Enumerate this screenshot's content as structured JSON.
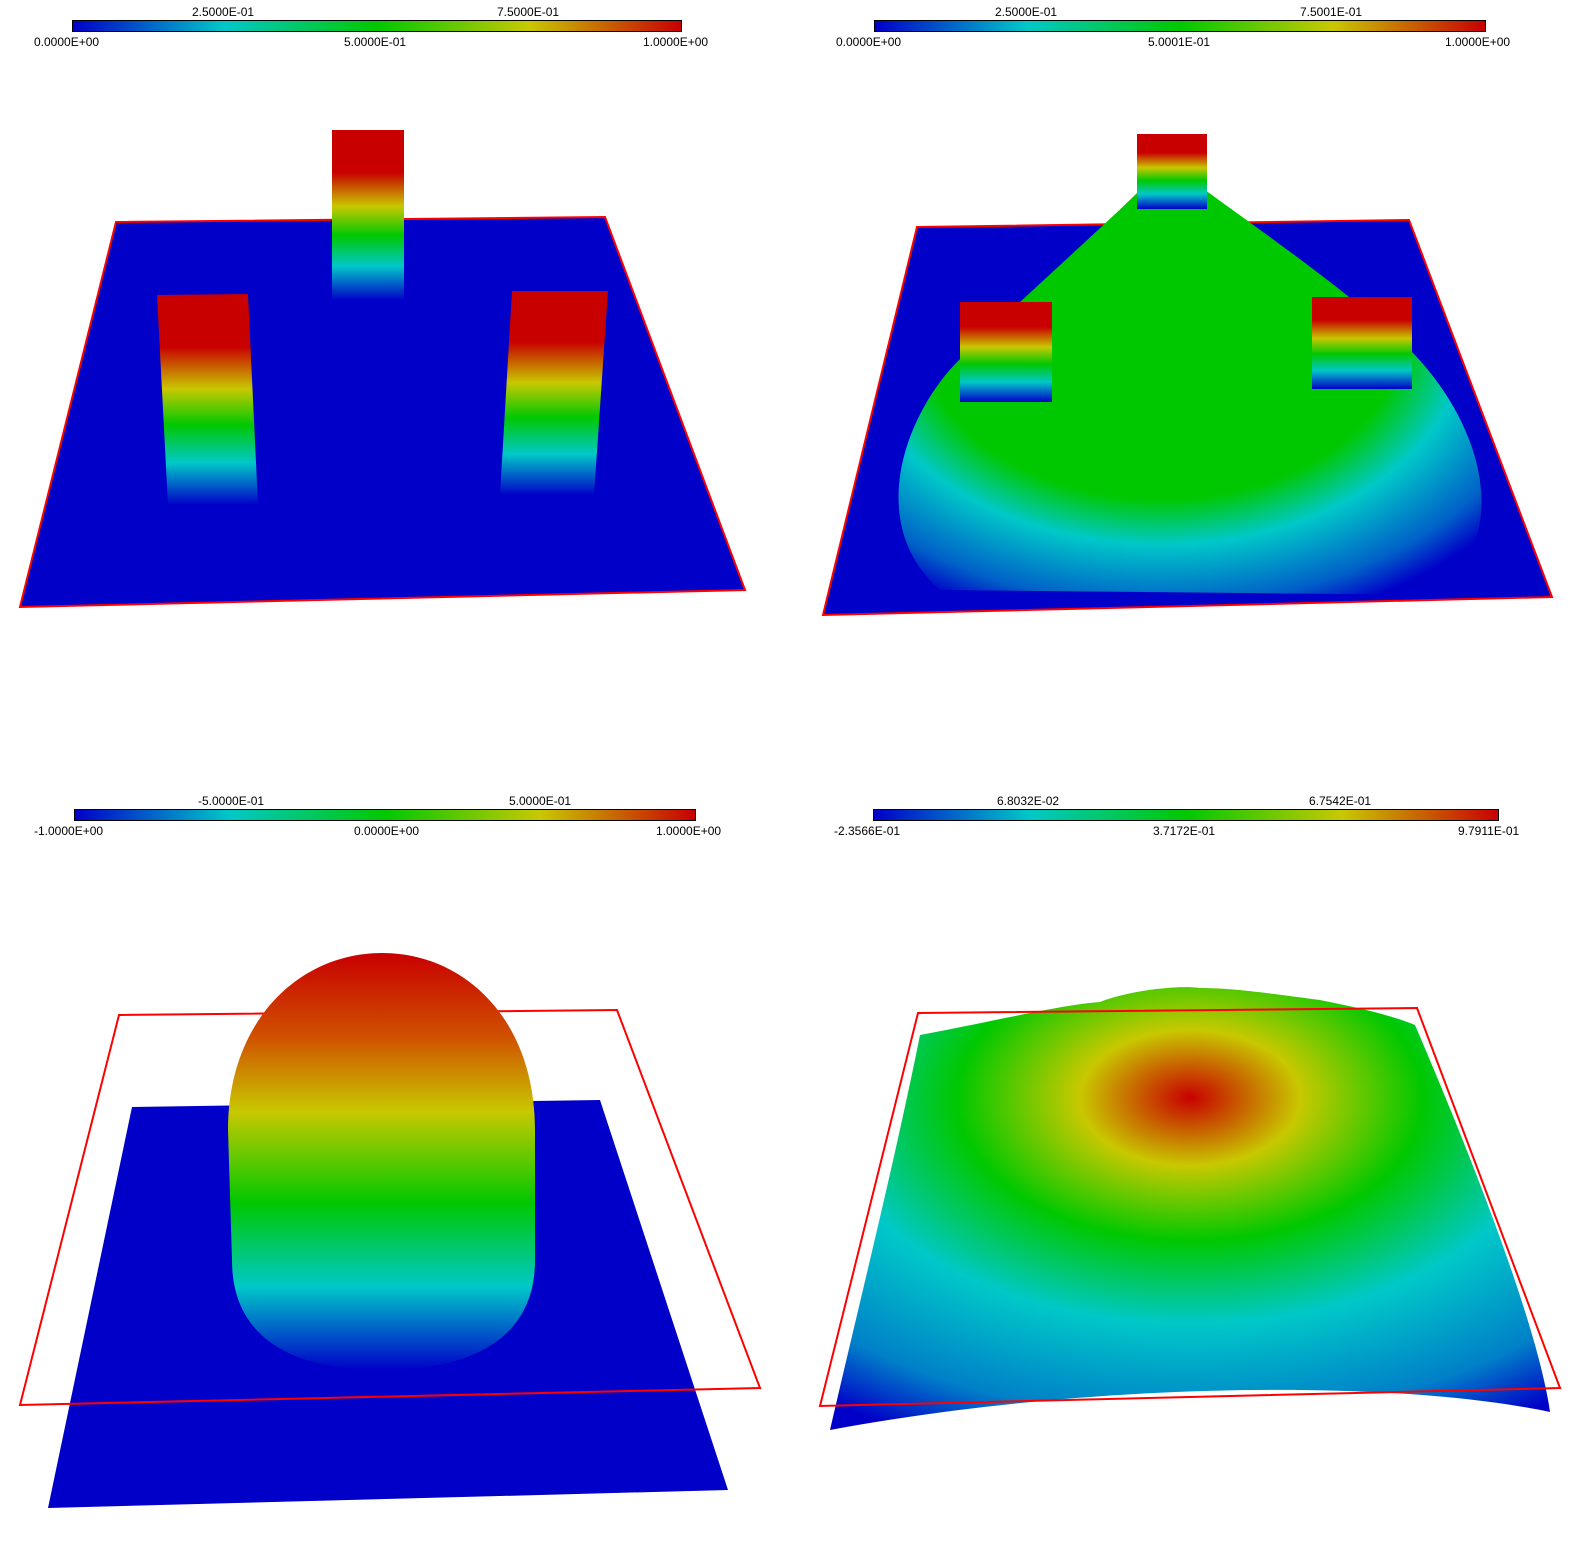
{
  "panels": [
    {
      "colorbar": {
        "ticks_top": [
          "2.5000E-01",
          "7.5000E-01"
        ],
        "ticks_bottom": [
          "0.0000E+00",
          "5.0000E-01",
          "1.0000E+00"
        ]
      }
    },
    {
      "colorbar": {
        "ticks_top": [
          "2.5000E-01",
          "7.5001E-01"
        ],
        "ticks_bottom": [
          "0.0000E+00",
          "5.0001E-01",
          "1.0000E+00"
        ]
      }
    },
    {
      "colorbar": {
        "ticks_top": [
          "-5.0000E-01",
          "5.0000E-01"
        ],
        "ticks_bottom": [
          "-1.0000E+00",
          "0.0000E+00",
          "1.0000E+00"
        ]
      }
    },
    {
      "colorbar": {
        "ticks_top": [
          "6.8032E-02",
          "6.7542E-01"
        ],
        "ticks_bottom": [
          "-2.3566E-01",
          "3.7172E-01",
          "9.7911E-01"
        ]
      }
    }
  ],
  "colors": {
    "blue": "#0000c8",
    "cyan": "#00c8c8",
    "green": "#00c800",
    "yellow": "#c8c800",
    "red": "#c80000",
    "frame": "#ff0000"
  }
}
